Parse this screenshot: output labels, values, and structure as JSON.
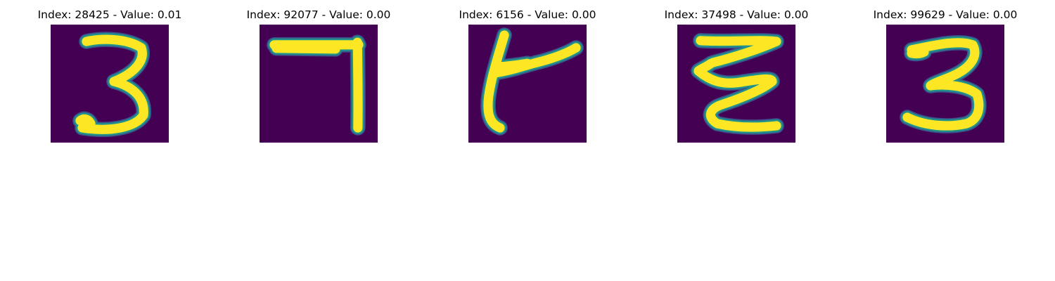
{
  "figure": {
    "panels": [
      {
        "title": "Index: 28425 - Value: 0.01"
      },
      {
        "title": "Index: 92077 - Value: 0.00"
      },
      {
        "title": "Index: 6156 - Value: 0.00"
      },
      {
        "title": "Index: 37498 - Value: 0.00"
      },
      {
        "title": "Index: 99629 - Value: 0.00"
      }
    ],
    "colors": {
      "background": "#440154",
      "stroke": "#fde725",
      "edge_mid": "#21918c",
      "edge_outer": "#3b528b"
    }
  }
}
